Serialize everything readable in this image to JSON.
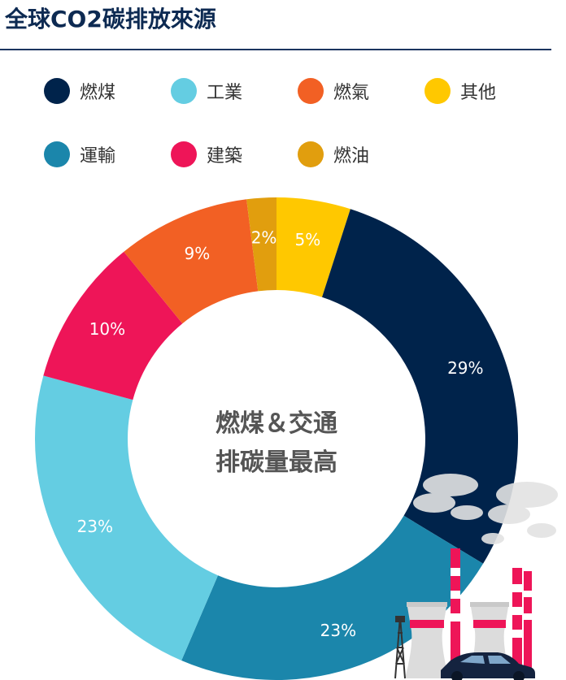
{
  "title": "全球CO2碳排放來源",
  "center": {
    "line1": "燃煤＆交通",
    "line2": "排碳量最高"
  },
  "legend": [
    {
      "label": "燃煤",
      "color": "#00234b"
    },
    {
      "label": "工業",
      "color": "#64cde2"
    },
    {
      "label": "燃氣",
      "color": "#f26024"
    },
    {
      "label": "其他",
      "color": "#ffc800"
    },
    {
      "label": "運輸",
      "color": "#1b86ab"
    },
    {
      "label": "建築",
      "color": "#ee1558"
    },
    {
      "label": "燃油",
      "color": "#e19e0e"
    }
  ],
  "chart_data": {
    "type": "pie",
    "title": "全球CO2碳排放來源",
    "donut": true,
    "slices": [
      {
        "name": "其他",
        "value": 5,
        "label": "5%",
        "color": "#ffc800"
      },
      {
        "name": "燃煤",
        "value": 29,
        "label": "29%",
        "color": "#00234b"
      },
      {
        "name": "運輸",
        "value": 23,
        "label": "23%",
        "color": "#1b86ab"
      },
      {
        "name": "工業",
        "value": 23,
        "label": "23%",
        "color": "#64cde2"
      },
      {
        "name": "建築",
        "value": 10,
        "label": "10%",
        "color": "#ee1558"
      },
      {
        "name": "燃氣",
        "value": 9,
        "label": "9%",
        "color": "#f26024"
      },
      {
        "name": "燃油",
        "value": 2,
        "label": "2%",
        "color": "#e19e0e"
      }
    ],
    "legend_position": "top"
  }
}
